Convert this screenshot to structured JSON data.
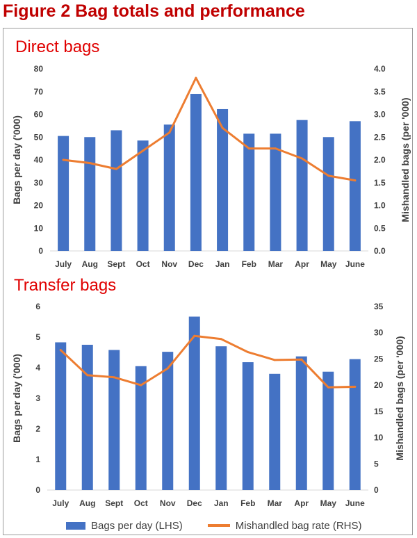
{
  "figure": {
    "title": "Figure 2  Bag totals and performance"
  },
  "colors": {
    "bar": "#4472c4",
    "line": "#ed7d31",
    "title": "#c00000",
    "chart_title": "#e00000"
  },
  "legend": {
    "bars_label": "Bags per day (LHS)",
    "line_label": "Mishandled bag rate (RHS)"
  },
  "chart_data": [
    {
      "type": "bar+line",
      "title": "Direct bags",
      "categories": [
        "July",
        "Aug",
        "Sept",
        "Oct",
        "Nov",
        "Dec",
        "Jan",
        "Feb",
        "Mar",
        "Apr",
        "May",
        "June"
      ],
      "series": [
        {
          "name": "Bags per day (LHS)",
          "type": "bar",
          "axis": "left",
          "values": [
            50.5,
            50,
            53,
            48.5,
            55.5,
            69,
            62.3,
            51.5,
            51.5,
            57.5,
            50,
            57
          ]
        },
        {
          "name": "Mishandled bag rate (RHS)",
          "type": "line",
          "axis": "right",
          "values": [
            2.0,
            1.93,
            1.8,
            2.2,
            2.6,
            3.8,
            2.7,
            2.25,
            2.25,
            2.03,
            1.65,
            1.55
          ]
        }
      ],
      "ylabel": "Bags per day ('000)",
      "y2label": "Mishandled bags (per '000)",
      "ylim": [
        0,
        80
      ],
      "yticks": [
        "0",
        "10",
        "20",
        "30",
        "40",
        "50",
        "60",
        "70",
        "80"
      ],
      "y2lim": [
        0,
        4
      ],
      "y2ticks": [
        "0.0",
        "0.5",
        "1.0",
        "1.5",
        "2.0",
        "2.5",
        "3.0",
        "3.5",
        "4.0"
      ]
    },
    {
      "type": "bar+line",
      "title": "Transfer bags",
      "categories": [
        "July",
        "Aug",
        "Sept",
        "Oct",
        "Nov",
        "Dec",
        "Jan",
        "Feb",
        "Mar",
        "Apr",
        "May",
        "June"
      ],
      "series": [
        {
          "name": "Bags per day (LHS)",
          "type": "bar",
          "axis": "left",
          "values": [
            4.83,
            4.75,
            4.58,
            4.05,
            4.52,
            5.67,
            4.7,
            4.18,
            3.8,
            4.37,
            3.87,
            4.28
          ]
        },
        {
          "name": "Mishandled bag rate (RHS)",
          "type": "line",
          "axis": "right",
          "values": [
            26.7,
            21.9,
            21.5,
            20.0,
            23.2,
            29.4,
            28.8,
            26.3,
            24.8,
            24.9,
            19.6,
            19.7
          ]
        }
      ],
      "ylabel": "Bags per day ('000)",
      "y2label": "Mishandled bags (per '000)",
      "ylim": [
        0,
        6
      ],
      "yticks": [
        "0",
        "1",
        "2",
        "3",
        "4",
        "5",
        "6"
      ],
      "y2lim": [
        0,
        35
      ],
      "y2ticks": [
        "0",
        "5",
        "10",
        "15",
        "20",
        "25",
        "30",
        "35"
      ]
    }
  ]
}
